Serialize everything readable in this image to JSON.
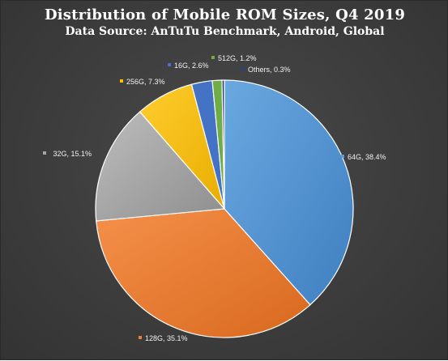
{
  "chart_data": {
    "type": "pie",
    "title": "Distribution of Mobile ROM Sizes, Q4 2019",
    "subtitle": "Data Source: AnTuTu Benchmark, Android, Global",
    "legend": "none",
    "slices": [
      {
        "label": "64G",
        "value": 38.4,
        "value_text": "38.4%",
        "color": "#5B9BD5"
      },
      {
        "label": "128G",
        "value": 35.1,
        "value_text": "35.1%",
        "color": "#ED7D31"
      },
      {
        "label": "32G",
        "value": 15.1,
        "value_text": "15.1%",
        "color": "#A5A5A5"
      },
      {
        "label": "256G",
        "value": 7.3,
        "value_text": "7.3%",
        "color": "#FFC000"
      },
      {
        "label": "16G",
        "value": 2.6,
        "value_text": "2.6%",
        "color": "#4472C4"
      },
      {
        "label": "512G",
        "value": 1.2,
        "value_text": "1.2%",
        "color": "#70AD47"
      },
      {
        "label": "Others",
        "value": 0.3,
        "value_text": "0.3%",
        "color": "#264478"
      }
    ]
  }
}
